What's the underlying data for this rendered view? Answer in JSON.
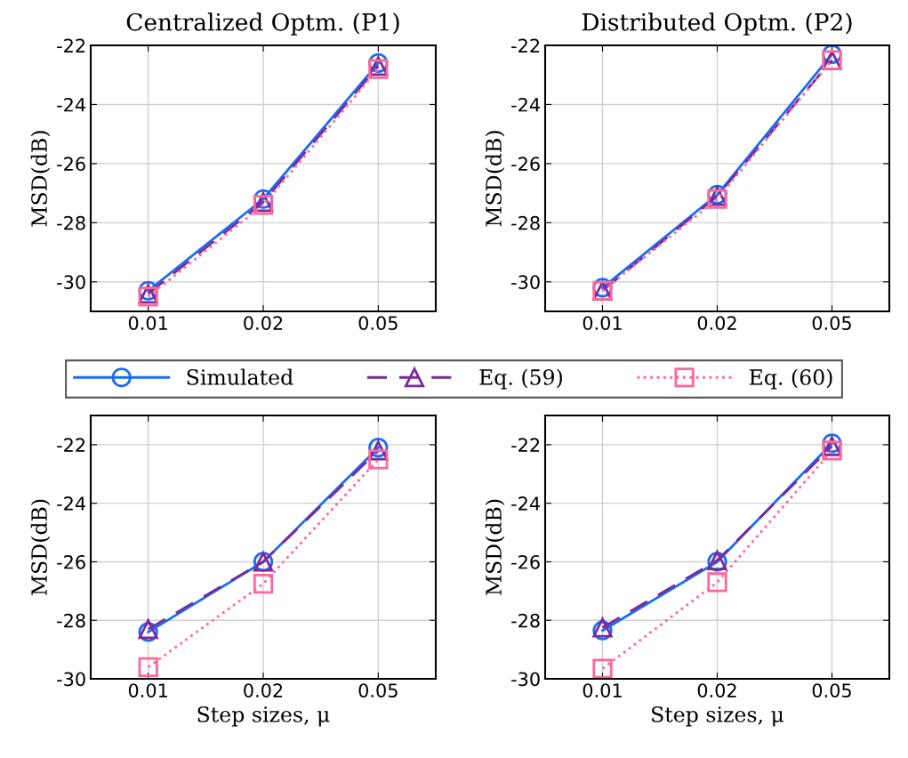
{
  "chart_data": [
    {
      "type": "line",
      "title": "Centralized Optm. (P1)",
      "ylabel": "MSD(dB)",
      "categories": [
        "0.01",
        "0.02",
        "0.05"
      ],
      "ylim": [
        -31,
        -22
      ],
      "yticks": [
        -30,
        -28,
        -26,
        -24,
        -22
      ],
      "grid": true,
      "legend": "bottom",
      "series": [
        {
          "name": "Simulated",
          "color": "#1a6cf0",
          "marker": "circle",
          "line_style": "solid",
          "values": [
            -30.3,
            -27.2,
            -22.6
          ]
        },
        {
          "name": "Eq. (59)",
          "color": "#7b2a9a",
          "marker": "triangle",
          "line_style": "dashed",
          "values": [
            -30.4,
            -27.3,
            -22.7
          ]
        },
        {
          "name": "Eq. (60)",
          "color": "#ff6699",
          "marker": "square",
          "line_style": "dotted",
          "values": [
            -30.5,
            -27.4,
            -22.8
          ]
        }
      ]
    },
    {
      "type": "line",
      "title": "Distributed Optm. (P2)",
      "ylabel": "MSD(dB)",
      "categories": [
        "0.01",
        "0.02",
        "0.05"
      ],
      "ylim": [
        -31,
        -22
      ],
      "yticks": [
        -30,
        -28,
        -26,
        -24,
        -22
      ],
      "grid": true,
      "series": [
        {
          "color": "#1a6cf0",
          "marker": "circle",
          "line_style": "solid",
          "values": [
            -30.2,
            -27.05,
            -22.3
          ]
        },
        {
          "color": "#7b2a9a",
          "marker": "triangle",
          "line_style": "dashed",
          "values": [
            -30.3,
            -27.1,
            -22.5
          ]
        },
        {
          "color": "#ff6699",
          "marker": "square",
          "line_style": "dotted",
          "values": [
            -30.3,
            -27.2,
            -22.5
          ]
        }
      ]
    },
    {
      "type": "line",
      "xlabel": "Step sizes, μ",
      "ylabel": "MSD(dB)",
      "categories": [
        "0.01",
        "0.02",
        "0.05"
      ],
      "ylim": [
        -30,
        -21
      ],
      "yticks": [
        -30,
        -28,
        -26,
        -24,
        -22
      ],
      "grid": true,
      "series": [
        {
          "color": "#1a6cf0",
          "marker": "circle",
          "line_style": "solid",
          "values": [
            -28.4,
            -26.0,
            -22.1
          ]
        },
        {
          "color": "#7b2a9a",
          "marker": "triangle",
          "line_style": "dashed",
          "values": [
            -28.3,
            -26.0,
            -22.2
          ]
        },
        {
          "color": "#ff6699",
          "marker": "square",
          "line_style": "dotted",
          "values": [
            -29.6,
            -26.75,
            -22.5
          ]
        }
      ]
    },
    {
      "type": "line",
      "xlabel": "Step sizes, μ",
      "ylabel": "MSD(dB)",
      "categories": [
        "0.01",
        "0.02",
        "0.05"
      ],
      "ylim": [
        -30,
        -21
      ],
      "yticks": [
        -30,
        -28,
        -26,
        -24,
        -22
      ],
      "grid": true,
      "series": [
        {
          "color": "#1a6cf0",
          "marker": "circle",
          "line_style": "solid",
          "values": [
            -28.35,
            -26.0,
            -21.95
          ]
        },
        {
          "color": "#7b2a9a",
          "marker": "triangle",
          "line_style": "dashed",
          "values": [
            -28.25,
            -25.95,
            -22.05
          ]
        },
        {
          "color": "#ff6699",
          "marker": "square",
          "line_style": "dotted",
          "values": [
            -29.65,
            -26.7,
            -22.2
          ]
        }
      ]
    }
  ]
}
